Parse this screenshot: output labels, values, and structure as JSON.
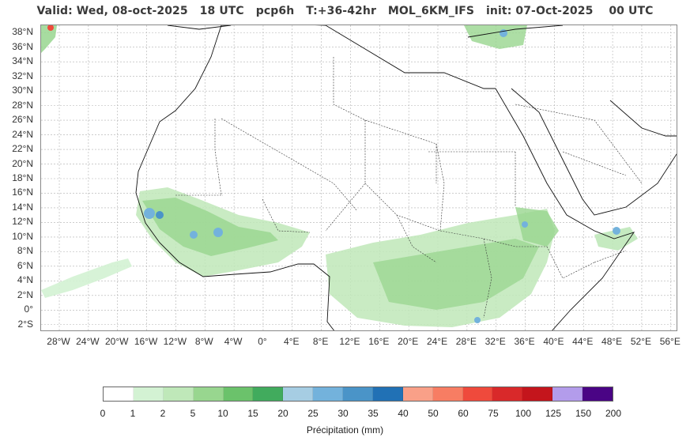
{
  "title": "Valid: Wed, 08-oct-2025   18 UTC   pcp6h   T:+36-42hr   MOL_6KM_IFS   init: 07-Oct-2025    00 UTC",
  "map": {
    "lat_labels": [
      "38°N",
      "36°N",
      "34°N",
      "32°N",
      "30°N",
      "28°N",
      "26°N",
      "24°N",
      "22°N",
      "20°N",
      "18°N",
      "16°N",
      "14°N",
      "12°N",
      "10°N",
      "8°N",
      "6°N",
      "4°N",
      "2°N",
      "0°",
      "2°S"
    ],
    "lon_labels": [
      "28°W",
      "24°W",
      "20°W",
      "16°W",
      "12°W",
      "8°W",
      "4°W",
      "0°",
      "4°E",
      "8°E",
      "12°E",
      "16°E",
      "20°E",
      "24°E",
      "28°E",
      "32°E",
      "36°E",
      "40°E",
      "44°E",
      "48°E",
      "52°E",
      "56°E"
    ],
    "lat_values": [
      38,
      36,
      34,
      32,
      30,
      28,
      26,
      24,
      22,
      20,
      18,
      16,
      14,
      12,
      10,
      8,
      6,
      4,
      2,
      0,
      -2
    ],
    "lon_values": [
      -28,
      -24,
      -20,
      -16,
      -12,
      -8,
      -4,
      0,
      4,
      8,
      12,
      16,
      20,
      24,
      28,
      32,
      36,
      40,
      44,
      48,
      52,
      56
    ],
    "extent": {
      "lon_min": -30.5,
      "lon_max": 57,
      "lat_min": -3,
      "lat_max": 39
    },
    "grid": true,
    "colors": {
      "coast": "#111111",
      "border": "#333333",
      "grid": "#b0b0b0"
    }
  },
  "colorbar": {
    "ticks": [
      "0",
      "1",
      "2",
      "5",
      "10",
      "15",
      "20",
      "25",
      "30",
      "35",
      "40",
      "50",
      "60",
      "75",
      "100",
      "125",
      "150",
      "200"
    ],
    "colors": [
      "#ffffff",
      "#d3f2d3",
      "#bfe8b9",
      "#98d68f",
      "#6bc26b",
      "#41ab5d",
      "#a6cde3",
      "#73b2dc",
      "#4a94c8",
      "#2171b5",
      "#f9a088",
      "#f77d63",
      "#ef4a3c",
      "#d9292a",
      "#c4151c",
      "#b39ceb",
      "#4a0485"
    ],
    "label": "Précipitation (mm)"
  }
}
